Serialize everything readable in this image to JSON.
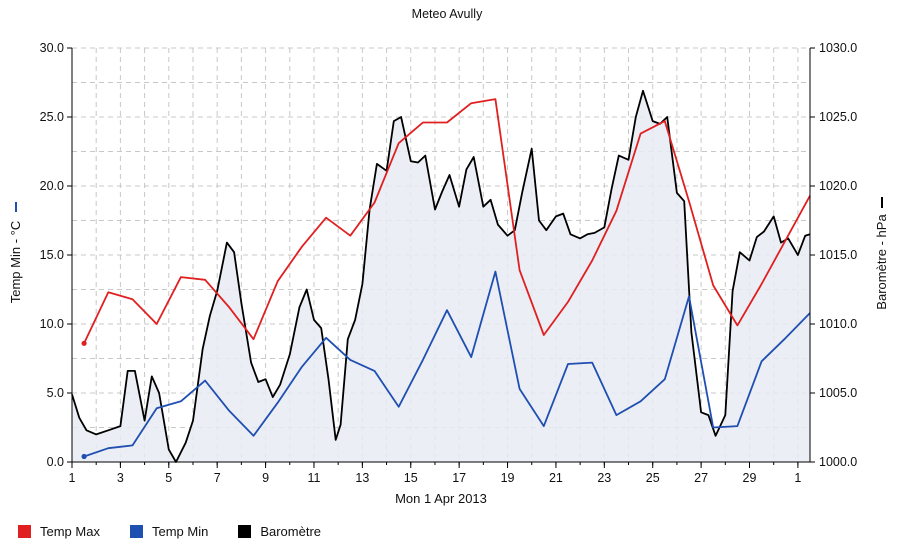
{
  "chart_data": {
    "type": "line",
    "title": "Meteo  Avully",
    "xlabel": "Mon 1 Apr 2013",
    "y_left_label": "Temp Min - °C",
    "y_right_label": "Baromètre - hPa",
    "x_ticks": [
      "1",
      "3",
      "5",
      "7",
      "9",
      "11",
      "13",
      "15",
      "17",
      "19",
      "21",
      "23",
      "25",
      "27",
      "29",
      "1"
    ],
    "y_left_ticks": [
      "0.0",
      "5.0",
      "10.0",
      "15.0",
      "20.0",
      "25.0",
      "30.0"
    ],
    "y_right_ticks": [
      "1000.0",
      "1005.0",
      "1010.0",
      "1015.0",
      "1020.0",
      "1025.0",
      "1030.0"
    ],
    "xlim": [
      1,
      31.5
    ],
    "ylim_left": [
      0,
      30
    ],
    "ylim_right": [
      1000,
      1030
    ],
    "grid": true,
    "legend_position": "bottom-left",
    "series": [
      {
        "name": "Temp Max",
        "color": "#e02020",
        "axis": "left",
        "x": [
          1.5,
          2.5,
          3.5,
          4.5,
          5.5,
          6.5,
          7.5,
          8.5,
          9.5,
          10.5,
          11.5,
          12.5,
          13.5,
          14.5,
          15.5,
          16.5,
          17.5,
          18.5,
          19.5,
          20.5,
          21.5,
          22.5,
          23.5,
          24.5,
          25.5,
          26.5,
          27.5,
          28.5,
          29.5,
          30.5,
          31.5
        ],
        "values": [
          8.6,
          12.3,
          11.8,
          10.0,
          13.4,
          13.2,
          11.2,
          8.9,
          13.1,
          15.6,
          17.7,
          16.4,
          18.8,
          23.1,
          24.6,
          24.6,
          26.0,
          26.3,
          13.9,
          9.2,
          11.6,
          14.6,
          18.2,
          23.8,
          24.7,
          18.9,
          12.8,
          9.9,
          12.9,
          16.1,
          19.3
        ]
      },
      {
        "name": "Temp Min",
        "color": "#1f4fb0",
        "axis": "left",
        "x": [
          1.5,
          2.5,
          3.5,
          4.5,
          5.5,
          6.5,
          7.5,
          8.5,
          9.5,
          10.5,
          11.5,
          12.5,
          13.5,
          14.5,
          15.5,
          16.5,
          17.5,
          18.5,
          19.5,
          20.5,
          21.5,
          22.5,
          23.5,
          24.5,
          25.5,
          26.5,
          27.5,
          28.5,
          29.5,
          30.5,
          31.5
        ],
        "values": [
          0.4,
          1.0,
          1.2,
          3.9,
          4.4,
          5.9,
          3.7,
          1.9,
          4.3,
          6.9,
          9.0,
          7.4,
          6.6,
          4.0,
          7.4,
          11.0,
          7.6,
          13.8,
          5.3,
          2.6,
          7.1,
          7.2,
          3.4,
          4.4,
          6.0,
          12.0,
          2.5,
          2.6,
          7.3,
          9.0,
          10.8
        ]
      },
      {
        "name": "Baromètre",
        "color": "#000000",
        "axis": "right",
        "x": [
          1.0,
          1.3,
          1.6,
          2.0,
          2.5,
          3.0,
          3.3,
          3.6,
          4.0,
          4.3,
          4.6,
          5.0,
          5.3,
          5.7,
          6.0,
          6.4,
          6.7,
          7.0,
          7.4,
          7.7,
          8.0,
          8.4,
          8.7,
          9.0,
          9.3,
          9.6,
          10.0,
          10.4,
          10.7,
          11.0,
          11.3,
          11.6,
          11.9,
          12.1,
          12.4,
          12.7,
          13.0,
          13.3,
          13.6,
          14.0,
          14.3,
          14.6,
          15.0,
          15.3,
          15.6,
          16.0,
          16.3,
          16.6,
          17.0,
          17.3,
          17.6,
          18.0,
          18.3,
          18.6,
          19.0,
          19.3,
          19.6,
          20.0,
          20.3,
          20.6,
          21.0,
          21.3,
          21.6,
          22.0,
          22.3,
          22.6,
          23.0,
          23.3,
          23.6,
          24.0,
          24.3,
          24.6,
          25.0,
          25.3,
          25.6,
          26.0,
          26.3,
          26.6,
          27.0,
          27.3,
          27.6,
          28.0,
          28.3,
          28.6,
          29.0,
          29.3,
          29.6,
          30.0,
          30.3,
          30.6,
          31.0,
          31.3,
          31.5
        ],
        "values": [
          1004.9,
          1003.2,
          1002.3,
          1002.0,
          1002.3,
          1002.6,
          1006.6,
          1006.6,
          1003.0,
          1006.2,
          1005.0,
          1000.9,
          1000.0,
          1001.4,
          1003.0,
          1008.2,
          1010.6,
          1012.4,
          1015.9,
          1015.2,
          1011.5,
          1007.2,
          1005.8,
          1006.0,
          1004.7,
          1005.6,
          1007.8,
          1011.2,
          1012.5,
          1010.3,
          1009.7,
          1006.0,
          1001.6,
          1002.7,
          1008.9,
          1010.3,
          1012.9,
          1018.3,
          1021.6,
          1021.1,
          1024.7,
          1025.0,
          1021.8,
          1021.7,
          1022.2,
          1018.3,
          1019.6,
          1020.8,
          1018.5,
          1021.2,
          1022.1,
          1018.5,
          1019.0,
          1017.2,
          1016.4,
          1016.8,
          1019.5,
          1022.7,
          1017.5,
          1016.8,
          1017.8,
          1018.0,
          1016.5,
          1016.2,
          1016.5,
          1016.6,
          1017.0,
          1019.8,
          1022.2,
          1021.9,
          1025.0,
          1026.9,
          1024.7,
          1024.5,
          1025.0,
          1019.5,
          1018.9,
          1009.4,
          1003.6,
          1003.4,
          1001.9,
          1003.4,
          1012.4,
          1015.2,
          1014.6,
          1016.3,
          1016.7,
          1017.8,
          1015.9,
          1016.2,
          1015.0,
          1016.4,
          1016.5
        ]
      }
    ]
  },
  "legend": [
    {
      "label": "Temp Max",
      "color": "#e02020"
    },
    {
      "label": "Temp Min",
      "color": "#1f4fb0"
    },
    {
      "label": "Baromètre",
      "color": "#000000"
    }
  ]
}
